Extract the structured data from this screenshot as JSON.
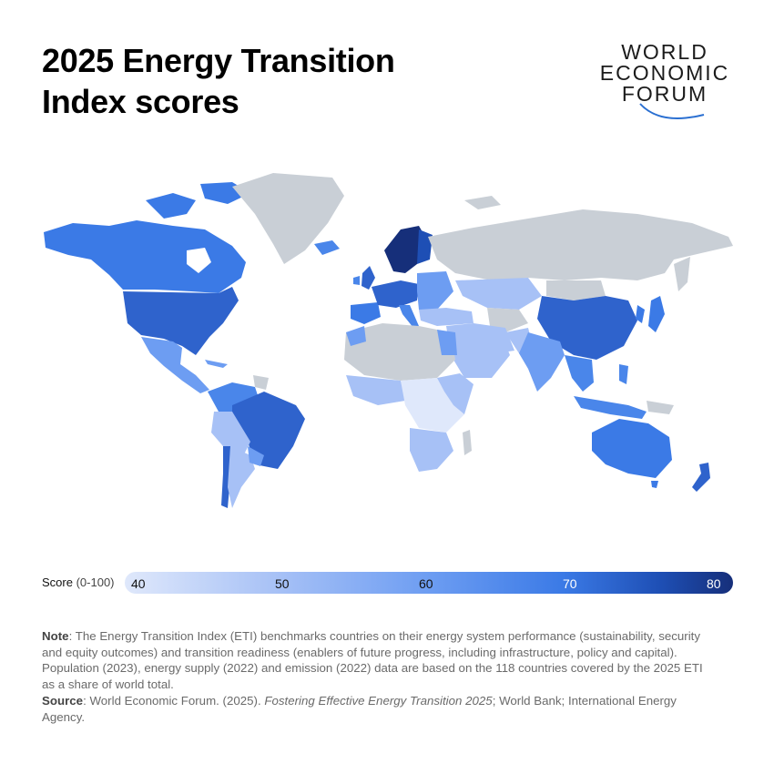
{
  "title": "2025 Energy Transition Index scores",
  "logo": {
    "lines": [
      "WORLD",
      "ECONOMIC",
      "FORUM"
    ]
  },
  "legend": {
    "label": "Score",
    "range": "(0-100)",
    "ticks": [
      "40",
      "50",
      "60",
      "70",
      "80"
    ],
    "colors": [
      "#dfe8fb",
      "#a7c1f6",
      "#6d9df2",
      "#3b7ae6",
      "#1e4fb5",
      "#162f7a"
    ],
    "no_data_color": "#c9cfd6"
  },
  "note": {
    "label": "Note",
    "text": ": The Energy Transition Index (ETI) benchmarks countries on their energy system performance (sustainability, security and equity outcomes) and transition readiness (enablers of future progress, including infrastructure, policy and capital). Population (2023), energy supply (2022) and emission (2022) data are based on the 118 countries covered by the 2025 ETI as a share of world total."
  },
  "source": {
    "label": "Source",
    "text_before": ": World Economic Forum. (2025). ",
    "title": "Fostering Effective Energy Transition 2025",
    "text_after": "; World Bank; International Energy Agency."
  },
  "map_regions": [
    {
      "name": "Canada",
      "score": 70
    },
    {
      "name": "United States",
      "score": 66
    },
    {
      "name": "Mexico",
      "score": 57
    },
    {
      "name": "Brazil",
      "score": 67
    },
    {
      "name": "Chile",
      "score": 64
    },
    {
      "name": "Argentina",
      "score": 56
    },
    {
      "name": "Western Europe",
      "score": 70
    },
    {
      "name": "Sweden",
      "score": 78
    },
    {
      "name": "Russia",
      "score": null
    },
    {
      "name": "China",
      "score": 67
    },
    {
      "name": "India",
      "score": 59
    },
    {
      "name": "Australia",
      "score": 62
    },
    {
      "name": "New Zealand",
      "score": 67
    },
    {
      "name": "Greenland",
      "score": null
    }
  ]
}
